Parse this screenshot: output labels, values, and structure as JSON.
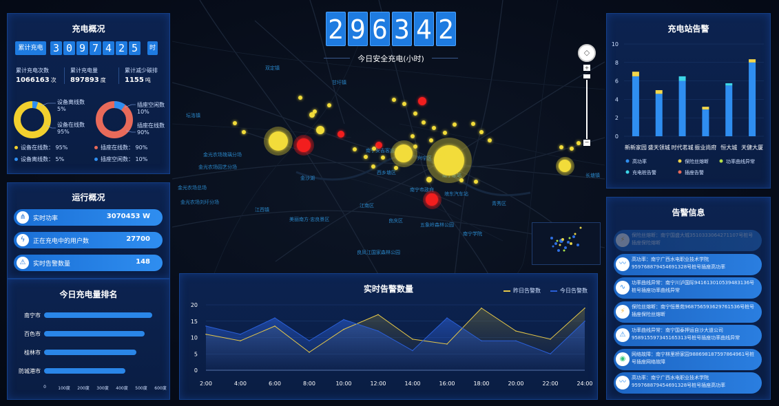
{
  "overview": {
    "title": "充电概况",
    "cumulative_label": "累计充电",
    "cumulative_digits": [
      "3",
      "0",
      "9",
      "7",
      "4",
      "2",
      "5"
    ],
    "cumulative_unit": "时",
    "stats": [
      {
        "label": "累计充电次数",
        "value": "1066163",
        "unit": "次"
      },
      {
        "label": "累计充电量",
        "value": "897893",
        "unit": "度"
      },
      {
        "label": "累计减少碳排",
        "value": "1155",
        "unit": "吨"
      }
    ],
    "donut1": {
      "legend_a": "设备离线数",
      "pct_a": "5%",
      "legend_b": "设备在线数",
      "pct_b": "95%",
      "online": 95,
      "offline": 5
    },
    "donut2": {
      "legend_a": "插座空闲数",
      "pct_a": "10%",
      "legend_b": "插座在线数",
      "pct_b": "90%",
      "online": 90,
      "idle": 10
    },
    "bottom_legend": [
      "设备在线数： 95%",
      "插座在线数： 90%",
      "设备离线数： 5%",
      "插座空闲数： 10%"
    ]
  },
  "operation": {
    "title": "运行概况",
    "items": [
      {
        "label": "实时功率",
        "value": "3070453 W"
      },
      {
        "label": "正在充电中的用户数",
        "value": "27700"
      },
      {
        "label": "实时告警数量",
        "value": "148"
      }
    ]
  },
  "ranking": {
    "title": "今日充电量排名",
    "cities": [
      "南宁市",
      "百色市",
      "桂林市",
      "防城港市"
    ],
    "values": [
      560,
      520,
      480,
      420
    ],
    "ticks": [
      "0",
      "100度",
      "200度",
      "300度",
      "400度",
      "500度",
      "600度"
    ]
  },
  "safety": {
    "digits": [
      "2",
      "9",
      "6",
      "3",
      "4",
      "2"
    ],
    "label": "今日安全充电(小时)"
  },
  "map": {
    "labels": [
      {
        "t": "双定镇",
        "x": 135,
        "y": 94
      },
      {
        "t": "甘圩镇",
        "x": 232,
        "y": 115
      },
      {
        "t": "坛洛镇",
        "x": 20,
        "y": 163
      },
      {
        "t": "金光农场琉璃分场",
        "x": 45,
        "y": 220
      },
      {
        "t": "金光农场园艺分场",
        "x": 38,
        "y": 238
      },
      {
        "t": "金沙湖",
        "x": 186,
        "y": 254
      },
      {
        "t": "南宁安吉客运站",
        "x": 281,
        "y": 214
      },
      {
        "t": "兴宁区",
        "x": 356,
        "y": 225
      },
      {
        "t": "西乡塘区",
        "x": 297,
        "y": 246
      },
      {
        "t": "南宁东站",
        "x": 392,
        "y": 250
      },
      {
        "t": "南宁市政府",
        "x": 345,
        "y": 271
      },
      {
        "t": "埌东汽车站",
        "x": 395,
        "y": 277
      },
      {
        "t": "长塘镇",
        "x": 600,
        "y": 250
      },
      {
        "t": "金光农场总场",
        "x": 8,
        "y": 268
      },
      {
        "t": "金光农场刘圩分场",
        "x": 12,
        "y": 289
      },
      {
        "t": "江西镇",
        "x": 120,
        "y": 300
      },
      {
        "t": "江南区",
        "x": 272,
        "y": 294
      },
      {
        "t": "青秀区",
        "x": 464,
        "y": 291
      },
      {
        "t": "良庆区",
        "x": 314,
        "y": 316
      },
      {
        "t": "五象岭森林公园",
        "x": 360,
        "y": 322
      },
      {
        "t": "美丽南方·忠良景区",
        "x": 170,
        "y": 314
      },
      {
        "t": "南宁学院",
        "x": 422,
        "y": 335
      },
      {
        "t": "良凤江国家森林公园",
        "x": 268,
        "y": 362
      }
    ]
  },
  "station_alarm": {
    "title": "充电站告警",
    "categories": [
      "新新家园",
      "盛天领城",
      "时代茗城",
      "振业尚府",
      "恒大城",
      "天健大厦"
    ],
    "series": [
      {
        "name": "高功率",
        "values": [
          6.5,
          4.6,
          6.0,
          2.9,
          5.5,
          8.0
        ],
        "color": "#2f8ef0"
      },
      {
        "name": "保险丝熔断",
        "values": [
          0.5,
          0.4,
          0,
          0.3,
          0,
          0.35
        ],
        "color": "#f2d64b"
      },
      {
        "name": "功率曲线异常",
        "values": [
          0,
          0,
          0,
          0,
          0,
          0
        ],
        "color": "#b6e04a"
      },
      {
        "name": "充电桩告警",
        "values": [
          0,
          0,
          0.5,
          0,
          0.25,
          0
        ],
        "color": "#3dd6e8"
      },
      {
        "name": "插座告警",
        "values": [
          0,
          0,
          0,
          0,
          0,
          0
        ],
        "color": "#e86a5a"
      }
    ],
    "yticks": [
      "0",
      "2",
      "4",
      "6",
      "8",
      "10"
    ]
  },
  "alerts": {
    "title": "告警信息",
    "items": [
      {
        "text": "保险丝熔断：南宁国盛大城3510333064271107号桩号插座保险熔断",
        "icon": "fuse-icon",
        "glyph": "⚡",
        "color": "#f2b53b"
      },
      {
        "text": "高功率：南宁广西水电职业技术学院959768879454691328号桩号插座高功率",
        "icon": "power-icon",
        "glyph": "〰",
        "color": "#2f8ef0"
      },
      {
        "text": "功率曲线异常：南宁川泸国际941613010539483136号桩号插座功率曲线异常",
        "icon": "curve-icon",
        "glyph": "∿",
        "color": "#2f8ef0"
      },
      {
        "text": "保险丝熔断：南宁恒景苑968756593629761536号桩号插座保险丝熔断",
        "icon": "fuse-icon",
        "glyph": "⚡",
        "color": "#f2b53b"
      },
      {
        "text": "功率曲线异常：南宁国泰押运自沙大道公司958915597345165313号桩号插座功率曲线异常",
        "icon": "alarm-icon",
        "glyph": "⚠",
        "color": "#2f8ef0"
      },
      {
        "text": "网络故障：南宁林里桥家园988698187597864961号桩号插座网络故障",
        "icon": "wifi-icon",
        "glyph": "◉",
        "color": "#2fc27a"
      },
      {
        "text": "高功率：南宁广西水电职业技术学院959768879454691328号桩号插座高功率",
        "icon": "power-icon",
        "glyph": "〰",
        "color": "#2f8ef0"
      }
    ]
  },
  "realtime": {
    "title": "实时告警数量",
    "legend_yesterday": "昨日告警数",
    "legend_today": "今日告警数",
    "xlabels": [
      "2:00",
      "4:00",
      "6:00",
      "8:00",
      "10:00",
      "12:00",
      "14:00",
      "16:00",
      "18:00",
      "20:00",
      "22:00",
      "24:00"
    ],
    "yticks": [
      "0",
      "5",
      "10",
      "15",
      "20"
    ]
  },
  "chart_data": {
    "type": "line",
    "title": "实时告警数量",
    "x": [
      "2:00",
      "4:00",
      "6:00",
      "8:00",
      "10:00",
      "12:00",
      "14:00",
      "16:00",
      "18:00",
      "20:00",
      "22:00",
      "24:00"
    ],
    "ylim": [
      0,
      20
    ],
    "series": [
      {
        "name": "昨日告警数",
        "values": [
          11,
          9,
          13.5,
          5.5,
          12.5,
          17,
          9.5,
          8,
          19,
          12,
          9.5,
          19
        ],
        "color": "#e6c84a"
      },
      {
        "name": "今日告警数",
        "values": [
          13.5,
          11,
          16,
          9,
          15.5,
          12,
          6,
          16,
          9,
          9,
          5,
          15
        ],
        "color": "#2a5fd8"
      }
    ]
  }
}
